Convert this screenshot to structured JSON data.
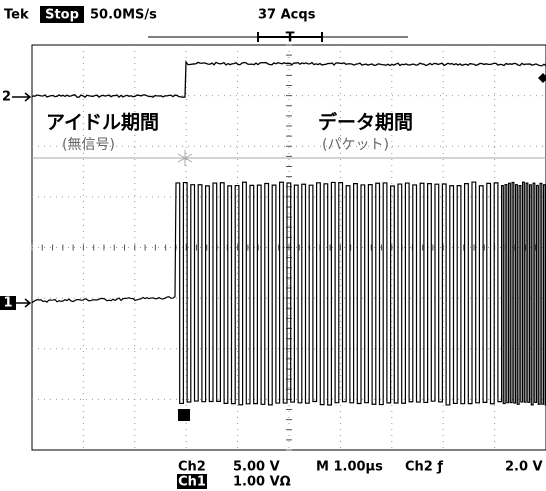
{
  "header": {
    "brand": "Tek",
    "state": "Stop",
    "sample_rate": "50.0MS/s",
    "acquisitions": "37 Acqs"
  },
  "markers": {
    "ch2": "2",
    "ch1": "1"
  },
  "annotations": {
    "idle_title": "アイドル期間",
    "idle_note": "(無信号)",
    "data_title": "データ期間",
    "data_note": "(パケット)"
  },
  "footer": {
    "ch2": "Ch2",
    "ch2_scale": "5.00 V",
    "timebase": "M 1.00µs",
    "trigger_source": "Ch2 ƒ",
    "trigger_level": "2.0 V",
    "ch1": "Ch1",
    "ch1_scale": "1.00 VΩ"
  }
}
